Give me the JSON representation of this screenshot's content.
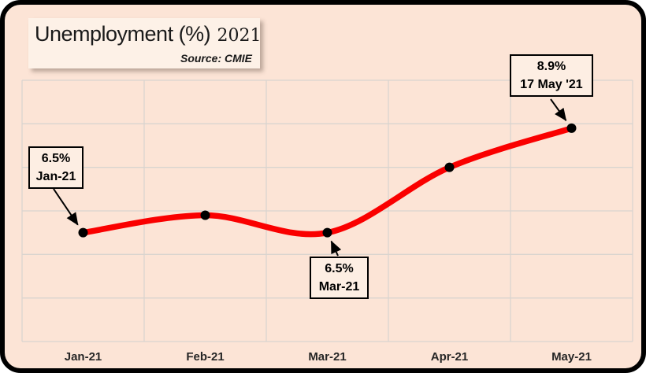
{
  "frame": {
    "background_color": "#fce4d6",
    "border_color": "#000000"
  },
  "title": {
    "main": "Unemployment (%)",
    "year": "2021",
    "source": "Source: CMIE"
  },
  "chart_data": {
    "type": "line",
    "title": "Unemployment (%) 2021",
    "categories": [
      "Jan-21",
      "Feb-21",
      "Mar-21",
      "Apr-21",
      "May-21"
    ],
    "values": [
      6.5,
      6.9,
      6.5,
      8.0,
      8.9
    ],
    "ylim": [
      4,
      10
    ],
    "gridline_step": 1,
    "grid": true,
    "grid_color": "#d9d4cf",
    "line_color": "#fa0000",
    "marker_color": "#000000",
    "smooth": true,
    "legend": "none",
    "y_axis_labels_visible": false,
    "annotations": [
      {
        "value": "6.5%",
        "label": "Jan-21",
        "point_index": 0
      },
      {
        "value": "6.5%",
        "label": "Mar-21",
        "point_index": 2
      },
      {
        "value": "8.9%",
        "label": "17 May '21",
        "point_index": 4
      }
    ]
  }
}
